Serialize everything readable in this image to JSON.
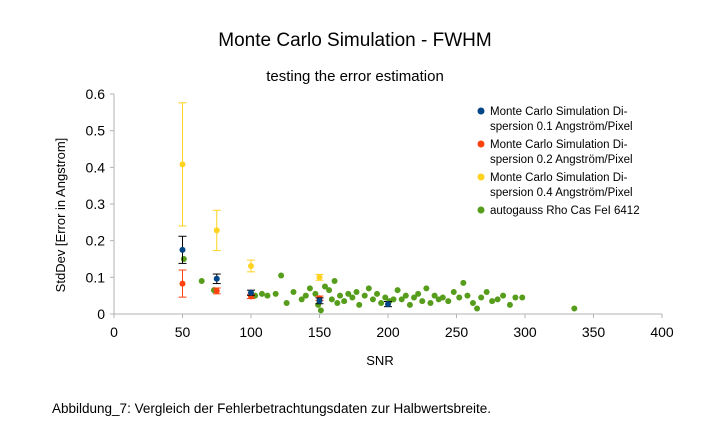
{
  "chart_data": {
    "type": "scatter",
    "title": "Monte Carlo Simulation - FWHM",
    "subtitle": "testing the error estimation",
    "xlabel": "SNR",
    "ylabel": "StdDev [Error in Angstrom]",
    "xlim": [
      0,
      400
    ],
    "ylim": [
      0,
      0.6
    ],
    "x_ticks": [
      "0",
      "50",
      "100",
      "150",
      "200",
      "250",
      "300",
      "350",
      "400"
    ],
    "y_ticks": [
      "0",
      "0.1",
      "0.2",
      "0.3",
      "0.4",
      "0.5",
      "0.6"
    ],
    "grid": false,
    "legend_position": "top-right",
    "series": [
      {
        "name_lines": [
          "Monte Carlo Simulation Di-",
          "spersion 0.1 Angström/Pixel"
        ],
        "color": "#004586",
        "error_bar_color": "#000000",
        "points": [
          {
            "x": 50,
            "y": 0.175,
            "err": 0.037
          },
          {
            "x": 75,
            "y": 0.096,
            "err": 0.013
          },
          {
            "x": 100,
            "y": 0.058,
            "err": 0.007
          },
          {
            "x": 150,
            "y": 0.036,
            "err": 0.008
          },
          {
            "x": 200,
            "y": 0.027,
            "err": 0.007
          }
        ]
      },
      {
        "name_lines": [
          "Monte Carlo Simulation Di-",
          "spersion 0.2 Angström/Pixel"
        ],
        "color": "#ff420e",
        "error_bar_color": "#ff420e",
        "points": [
          {
            "x": 50,
            "y": 0.083,
            "err": 0.037
          },
          {
            "x": 75,
            "y": 0.063,
            "err": 0.008
          },
          {
            "x": 100,
            "y": 0.048,
            "err": 0.006
          },
          {
            "x": 150,
            "y": 0.043,
            "err": 0.006
          }
        ]
      },
      {
        "name_lines": [
          "Monte Carlo Simulation Di-",
          "spersion 0.4 Angström/Pixel"
        ],
        "color": "#ffd320",
        "error_bar_color": "#ffd320",
        "points": [
          {
            "x": 50,
            "y": 0.408,
            "err": 0.168
          },
          {
            "x": 75,
            "y": 0.228,
            "err": 0.055
          },
          {
            "x": 100,
            "y": 0.131,
            "err": 0.016
          },
          {
            "x": 150,
            "y": 0.1,
            "err": 0.008
          }
        ]
      },
      {
        "name_lines": [
          "autogauss Rho Cas FeI 6412"
        ],
        "color": "#579d1c",
        "points": [
          {
            "x": 51,
            "y": 0.15
          },
          {
            "x": 64,
            "y": 0.09
          },
          {
            "x": 73,
            "y": 0.065
          },
          {
            "x": 103,
            "y": 0.05
          },
          {
            "x": 108,
            "y": 0.055
          },
          {
            "x": 112,
            "y": 0.05
          },
          {
            "x": 118,
            "y": 0.055
          },
          {
            "x": 122,
            "y": 0.105
          },
          {
            "x": 126,
            "y": 0.03
          },
          {
            "x": 131,
            "y": 0.06
          },
          {
            "x": 137,
            "y": 0.04
          },
          {
            "x": 140,
            "y": 0.05
          },
          {
            "x": 143,
            "y": 0.07
          },
          {
            "x": 147,
            "y": 0.055
          },
          {
            "x": 149,
            "y": 0.025
          },
          {
            "x": 151,
            "y": 0.01
          },
          {
            "x": 154,
            "y": 0.075
          },
          {
            "x": 157,
            "y": 0.065
          },
          {
            "x": 159,
            "y": 0.04
          },
          {
            "x": 161,
            "y": 0.09
          },
          {
            "x": 163,
            "y": 0.03
          },
          {
            "x": 165,
            "y": 0.05
          },
          {
            "x": 168,
            "y": 0.035
          },
          {
            "x": 171,
            "y": 0.055
          },
          {
            "x": 174,
            "y": 0.045
          },
          {
            "x": 177,
            "y": 0.06
          },
          {
            "x": 179,
            "y": 0.025
          },
          {
            "x": 183,
            "y": 0.05
          },
          {
            "x": 186,
            "y": 0.07
          },
          {
            "x": 189,
            "y": 0.04
          },
          {
            "x": 192,
            "y": 0.055
          },
          {
            "x": 195,
            "y": 0.03
          },
          {
            "x": 198,
            "y": 0.045
          },
          {
            "x": 201,
            "y": 0.035
          },
          {
            "x": 204,
            "y": 0.04
          },
          {
            "x": 207,
            "y": 0.065
          },
          {
            "x": 210,
            "y": 0.04
          },
          {
            "x": 213,
            "y": 0.05
          },
          {
            "x": 216,
            "y": 0.025
          },
          {
            "x": 219,
            "y": 0.045
          },
          {
            "x": 222,
            "y": 0.055
          },
          {
            "x": 225,
            "y": 0.035
          },
          {
            "x": 228,
            "y": 0.07
          },
          {
            "x": 231,
            "y": 0.03
          },
          {
            "x": 234,
            "y": 0.05
          },
          {
            "x": 237,
            "y": 0.04
          },
          {
            "x": 240,
            "y": 0.045
          },
          {
            "x": 244,
            "y": 0.035
          },
          {
            "x": 248,
            "y": 0.06
          },
          {
            "x": 252,
            "y": 0.045
          },
          {
            "x": 255,
            "y": 0.085
          },
          {
            "x": 258,
            "y": 0.05
          },
          {
            "x": 262,
            "y": 0.03
          },
          {
            "x": 265,
            "y": 0.015
          },
          {
            "x": 268,
            "y": 0.045
          },
          {
            "x": 272,
            "y": 0.06
          },
          {
            "x": 276,
            "y": 0.035
          },
          {
            "x": 280,
            "y": 0.04
          },
          {
            "x": 284,
            "y": 0.05
          },
          {
            "x": 289,
            "y": 0.025
          },
          {
            "x": 293,
            "y": 0.045
          },
          {
            "x": 298,
            "y": 0.045
          },
          {
            "x": 336,
            "y": 0.015
          }
        ]
      }
    ]
  },
  "caption": "Abbildung_7: Vergleich der Fehlerbetrachtungsdaten zur Halbwertsbreite."
}
